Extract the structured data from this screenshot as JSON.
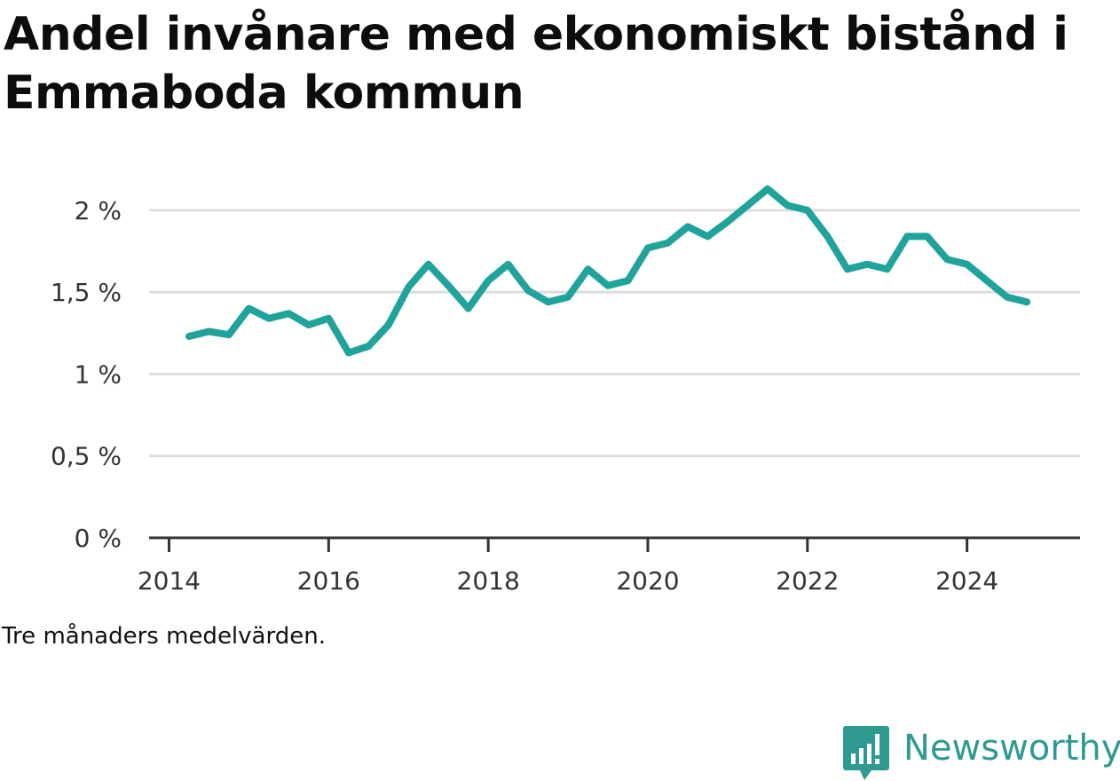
{
  "title": "Andel invånare med ekonomiskt bistånd i Emmaboda kommun",
  "caption": "Tre månaders medelvärden.",
  "brand": {
    "name": "Newsworthy",
    "icon": "bar-chart-speech-bubble-icon",
    "color": "#2f9a92"
  },
  "colors": {
    "series": "#1fa39b",
    "grid": "#dddddd",
    "axis": "#333333"
  },
  "chart_data": {
    "type": "line",
    "title": "Andel invånare med ekonomiskt bistånd i Emmaboda kommun",
    "xlabel": "",
    "ylabel": "",
    "ylim": [
      0,
      2.2
    ],
    "xlim": [
      "2013-10",
      "2025-06"
    ],
    "grid": true,
    "legend": "none",
    "yticks": [
      {
        "value": 0,
        "label": "0 %"
      },
      {
        "value": 0.5,
        "label": "0,5 %"
      },
      {
        "value": 1,
        "label": "1 %"
      },
      {
        "value": 1.5,
        "label": "1,5 %"
      },
      {
        "value": 2,
        "label": "2 %"
      }
    ],
    "xticks": [
      {
        "value": "2014-01",
        "label": "2014"
      },
      {
        "value": "2016-01",
        "label": "2016"
      },
      {
        "value": "2018-01",
        "label": "2018"
      },
      {
        "value": "2020-01",
        "label": "2020"
      },
      {
        "value": "2022-01",
        "label": "2022"
      },
      {
        "value": "2024-01",
        "label": "2024"
      }
    ],
    "series": [
      {
        "name": "",
        "x": [
          "2014-04",
          "2014-07",
          "2014-10",
          "2015-01",
          "2015-04",
          "2015-07",
          "2015-10",
          "2016-01",
          "2016-04",
          "2016-07",
          "2016-10",
          "2017-01",
          "2017-04",
          "2017-07",
          "2017-10",
          "2018-01",
          "2018-04",
          "2018-07",
          "2018-10",
          "2019-01",
          "2019-04",
          "2019-07",
          "2019-10",
          "2020-01",
          "2020-04",
          "2020-07",
          "2020-10",
          "2021-01",
          "2021-04",
          "2021-07",
          "2021-10",
          "2022-01",
          "2022-04",
          "2022-07",
          "2022-10",
          "2023-01",
          "2023-04",
          "2023-07",
          "2023-10",
          "2024-01",
          "2024-04",
          "2024-07",
          "2024-10"
        ],
        "values": [
          1.23,
          1.26,
          1.24,
          1.4,
          1.34,
          1.37,
          1.3,
          1.34,
          1.13,
          1.17,
          1.3,
          1.53,
          1.67,
          1.54,
          1.4,
          1.57,
          1.67,
          1.51,
          1.44,
          1.47,
          1.64,
          1.54,
          1.57,
          1.77,
          1.8,
          1.9,
          1.84,
          1.93,
          2.03,
          2.13,
          2.03,
          2.0,
          1.84,
          1.64,
          1.67,
          1.64,
          1.84,
          1.84,
          1.7,
          1.67,
          1.57,
          1.47,
          1.44
        ]
      }
    ]
  }
}
